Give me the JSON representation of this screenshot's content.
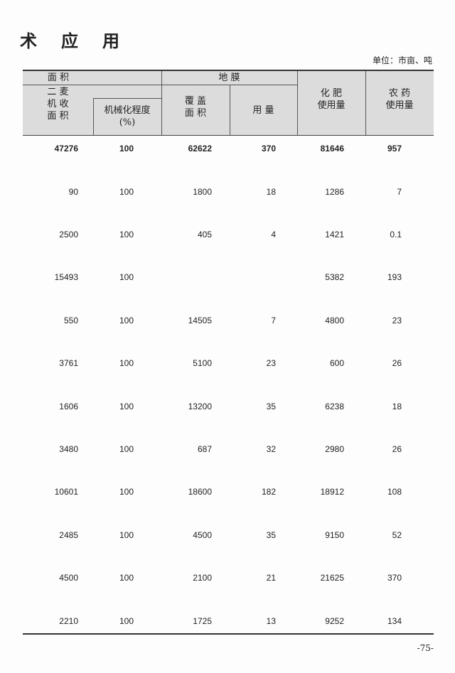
{
  "title": [
    "术",
    "应",
    "用"
  ],
  "unit": "单位：市亩、吨",
  "header": {
    "area_group": "面 积",
    "film_group": "地 膜",
    "wheat_area": "二 麦\n机 收\n面 积",
    "mech_degree": "机械化程度\n(%)",
    "cover_area": "覆 盖\n面 积",
    "film_usage": "用 量",
    "fertilizer": "化 肥\n使用量",
    "pesticide": "农 药\n使用量"
  },
  "rows": [
    [
      "47276",
      "100",
      "62622",
      "370",
      "81646",
      "957"
    ],
    [
      "90",
      "100",
      "1800",
      "18",
      "1286",
      "7"
    ],
    [
      "2500",
      "100",
      "405",
      "4",
      "1421",
      "0.1"
    ],
    [
      "15493",
      "100",
      "",
      "",
      "5382",
      "193"
    ],
    [
      "550",
      "100",
      "14505",
      "7",
      "4800",
      "23"
    ],
    [
      "3761",
      "100",
      "5100",
      "23",
      "600",
      "26"
    ],
    [
      "1606",
      "100",
      "13200",
      "35",
      "6238",
      "18"
    ],
    [
      "3480",
      "100",
      "687",
      "32",
      "2980",
      "26"
    ],
    [
      "10601",
      "100",
      "18600",
      "182",
      "18912",
      "108"
    ],
    [
      "2485",
      "100",
      "4500",
      "35",
      "9150",
      "52"
    ],
    [
      "4500",
      "100",
      "2100",
      "21",
      "21625",
      "370"
    ],
    [
      "2210",
      "100",
      "1725",
      "13",
      "9252",
      "134"
    ]
  ],
  "page_number": "-75-"
}
